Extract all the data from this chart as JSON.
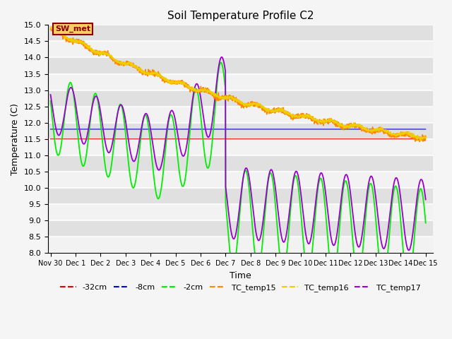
{
  "title": "Soil Temperature Profile C2",
  "xlabel": "Time",
  "ylabel": "Temperature (C)",
  "ylim": [
    8.0,
    15.0
  ],
  "xlim": [
    -0.1,
    15.3
  ],
  "yticks": [
    8.0,
    8.5,
    9.0,
    9.5,
    10.0,
    10.5,
    11.0,
    11.5,
    12.0,
    12.5,
    13.0,
    13.5,
    14.0,
    14.5,
    15.0
  ],
  "xtick_positions": [
    0,
    1,
    2,
    3,
    4,
    5,
    6,
    7,
    8,
    9,
    10,
    11,
    12,
    13,
    14,
    15
  ],
  "xtick_labels": [
    "Nov 30",
    "Dec 1",
    "Dec 2",
    "Dec 3",
    "Dec 4",
    "Dec 5",
    "Dec 6",
    "Dec 7",
    "Dec 8",
    "Dec 9",
    "Dec 10",
    "Dec 11",
    "Dec 12",
    "Dec 13",
    "Dec 14",
    "Dec 15"
  ],
  "sw_met_label": "SW_met",
  "colors": {
    "neg32cm": "#dd0000",
    "neg8cm": "#0000dd",
    "neg2cm": "#00ee00",
    "tc15": "#ff8800",
    "tc16": "#eecc00",
    "tc17": "#9900cc"
  },
  "legend_labels": [
    "-32cm",
    "-8cm",
    "-2cm",
    "TC_temp15",
    "TC_temp16",
    "TC_temp17"
  ],
  "bg_color": "#e0e0e0",
  "fig_bg": "#f5f5f5"
}
